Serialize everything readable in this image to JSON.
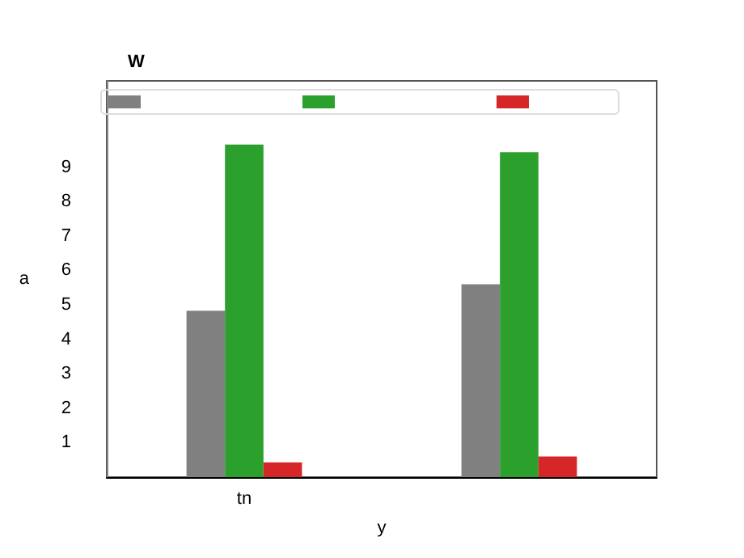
{
  "chart_data": {
    "type": "bar",
    "title": "W",
    "xlabel": "y",
    "ylabel": "a",
    "categories": [
      "tn",
      null
    ],
    "series": [
      {
        "color": "#808080",
        "values": [
          4.83,
          5.6
        ]
      },
      {
        "color": "#2ca02c",
        "values": [
          9.65,
          9.43
        ]
      },
      {
        "color": "#d62728",
        "values": [
          0.43,
          0.6
        ]
      }
    ],
    "ylim": [
      0,
      11.5
    ],
    "yticks": [
      1,
      2,
      3,
      4,
      5,
      6,
      7,
      8,
      9
    ],
    "grid": false
  }
}
